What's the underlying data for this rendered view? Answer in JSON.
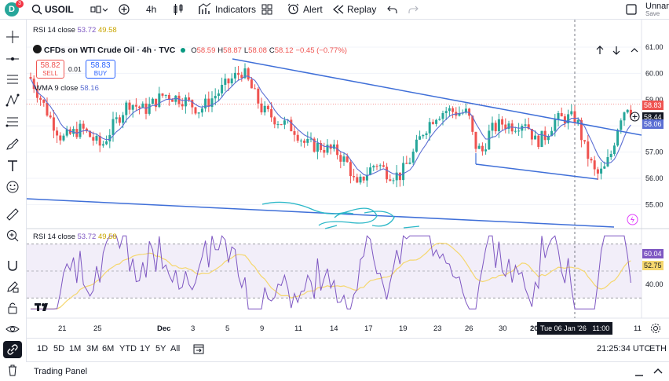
{
  "topbar": {
    "avatar_letter": "D",
    "avatar_badge": "3",
    "symbol": "USOIL",
    "interval": "4h",
    "indicators_label": "Indicators",
    "alert_label": "Alert",
    "replay_label": "Replay",
    "layout_name": "Unnam",
    "layout_status": "Save"
  },
  "legend": {
    "rsi_top": {
      "name": "RSI 14 close",
      "v1": "53.72",
      "v2": "49.58"
    },
    "title": "CFDs on WTI Crude Oil · 4h · TVC",
    "o_label": "O",
    "o": "58.59",
    "h_label": "H",
    "h": "58.87",
    "l_label": "L",
    "l": "58.08",
    "c_label": "C",
    "c": "58.12",
    "change": "−0.45 (−0.77%)",
    "sell_price": "58.82",
    "sell_label": "SELL",
    "spread": "0.01",
    "buy_price": "58.83",
    "buy_label": "BUY",
    "wma_name": "WMA 9 close",
    "wma_value": "58.16",
    "rsi_name": "RSI 14 close",
    "rsi_v1": "53.72",
    "rsi_v2": "49.58"
  },
  "price_axis": {
    "ticks": [
      "61.00",
      "60.00",
      "59.00",
      "58.00",
      "57.00",
      "56.00",
      "55.00"
    ],
    "tag_ask": "58.83",
    "tag_cross": "58.44",
    "tag_wma": "58.06"
  },
  "rsi_axis": {
    "ticks": [
      "40.00"
    ],
    "tag_rsi": "60.04",
    "tag_ma": "52.75"
  },
  "time_axis": {
    "labels": [
      "21",
      "25",
      "Dec",
      "3",
      "5",
      "9",
      "11",
      "14",
      "17",
      "19",
      "23",
      "26",
      "30",
      "2026",
      "11"
    ],
    "crosshair_label": "Tue 06 Jan '26   11:00"
  },
  "range_bar": {
    "ranges": [
      "1D",
      "5D",
      "1M",
      "3M",
      "6M",
      "YTD",
      "1Y",
      "5Y",
      "All"
    ],
    "clock": "21:25:34 UTC",
    "market": "ETH"
  },
  "panel": {
    "title": "Trading Panel"
  },
  "colors": {
    "up": "#26a69a",
    "down": "#ef5350",
    "wma": "#5b6ed3",
    "trend": "#3f6fd8",
    "rsi": "#7e57c2",
    "rsi_ma": "#f5d76e"
  }
}
